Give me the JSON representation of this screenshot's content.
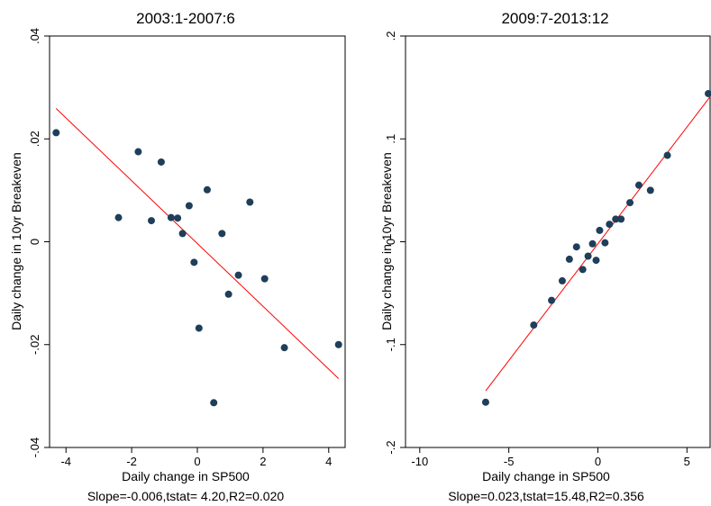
{
  "chart_data": [
    {
      "type": "scatter",
      "title": "2003:1-2007:6",
      "xlabel": "Daily change in SP500",
      "ylabel": "Daily change in 10yr Breakeven",
      "note": "Slope=-0.006,tstat= 4.20,R2=0.020",
      "xlim": [
        -4.5,
        4.5
      ],
      "ylim": [
        -0.04,
        0.04
      ],
      "xticks": [
        -4,
        -2,
        0,
        2,
        4
      ],
      "xtick_labels": [
        "-4",
        "-2",
        "0",
        "2",
        "4"
      ],
      "yticks": [
        -0.04,
        -0.02,
        0,
        0.02,
        0.04
      ],
      "ytick_labels": [
        "-.04",
        "-.02",
        "0",
        ".02",
        ".04"
      ],
      "grid": false,
      "marker_color": "#1f3e5a",
      "fit_color": "#ff0000",
      "points": [
        [
          -4.3,
          0.0212
        ],
        [
          -2.4,
          0.0047
        ],
        [
          -1.8,
          0.0175
        ],
        [
          -1.4,
          0.0041
        ],
        [
          -1.1,
          0.0155
        ],
        [
          -0.8,
          0.0047
        ],
        [
          -0.6,
          0.0046
        ],
        [
          -0.45,
          0.0016
        ],
        [
          -0.25,
          0.007
        ],
        [
          -0.1,
          -0.004
        ],
        [
          0.05,
          -0.0168
        ],
        [
          0.3,
          0.0101
        ],
        [
          0.5,
          -0.0313
        ],
        [
          0.75,
          0.0016
        ],
        [
          0.95,
          -0.0102
        ],
        [
          1.25,
          -0.0065
        ],
        [
          1.6,
          0.0077
        ],
        [
          2.05,
          -0.0072
        ],
        [
          2.65,
          -0.0206
        ],
        [
          4.3,
          -0.02
        ]
      ],
      "fit_line": [
        [
          -4.3,
          0.0259
        ],
        [
          4.3,
          -0.0266
        ]
      ]
    },
    {
      "type": "scatter",
      "title": "2009:7-2013:12",
      "xlabel": "Daily change in SP500",
      "ylabel": "Daily change in 10yr Breakeven",
      "note": "Slope=0.023,tstat=15.48,R2=0.356",
      "xlim": [
        -10.8,
        6.3
      ],
      "ylim": [
        -0.2,
        0.2
      ],
      "xticks": [
        -10,
        -5,
        0,
        5
      ],
      "xtick_labels": [
        "-10",
        "-5",
        "0",
        "5"
      ],
      "yticks": [
        -0.2,
        -0.1,
        0,
        0.1,
        0.2
      ],
      "ytick_labels": [
        "-.2",
        "-.1",
        "0",
        ".1",
        ".2"
      ],
      "grid": false,
      "marker_color": "#1f3e5a",
      "fit_color": "#ff0000",
      "points": [
        [
          -6.3,
          -0.156
        ],
        [
          -3.6,
          -0.081
        ],
        [
          -2.6,
          -0.057
        ],
        [
          -2.0,
          -0.038
        ],
        [
          -1.6,
          -0.017
        ],
        [
          -1.2,
          -0.005
        ],
        [
          -0.85,
          -0.027
        ],
        [
          -0.55,
          -0.014
        ],
        [
          -0.3,
          -0.002
        ],
        [
          -0.1,
          -0.018
        ],
        [
          0.1,
          0.011
        ],
        [
          0.4,
          -0.001
        ],
        [
          0.65,
          0.017
        ],
        [
          1.0,
          0.022
        ],
        [
          1.3,
          0.022
        ],
        [
          1.8,
          0.038
        ],
        [
          2.3,
          0.055
        ],
        [
          2.95,
          0.05
        ],
        [
          3.9,
          0.084
        ],
        [
          6.2,
          0.144
        ]
      ],
      "fit_line": [
        [
          -6.3,
          -0.145
        ],
        [
          6.3,
          0.141
        ]
      ]
    }
  ]
}
